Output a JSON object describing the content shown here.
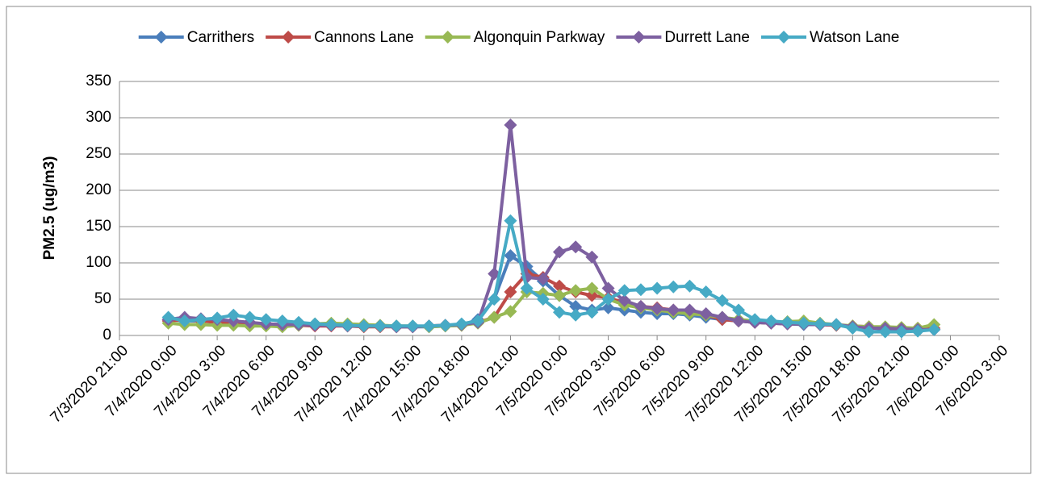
{
  "chart_data": {
    "type": "line",
    "y_label": "PM2.5 (ug/m3)",
    "x": [
      "7/4/2020 0:00",
      "7/4/2020 1:00",
      "7/4/2020 2:00",
      "7/4/2020 3:00",
      "7/4/2020 4:00",
      "7/4/2020 5:00",
      "7/4/2020 6:00",
      "7/4/2020 7:00",
      "7/4/2020 8:00",
      "7/4/2020 9:00",
      "7/4/2020 10:00",
      "7/4/2020 11:00",
      "7/4/2020 12:00",
      "7/4/2020 13:00",
      "7/4/2020 14:00",
      "7/4/2020 15:00",
      "7/4/2020 16:00",
      "7/4/2020 17:00",
      "7/4/2020 18:00",
      "7/4/2020 19:00",
      "7/4/2020 20:00",
      "7/4/2020 21:00",
      "7/4/2020 22:00",
      "7/4/2020 23:00",
      "7/5/2020 0:00",
      "7/5/2020 1:00",
      "7/5/2020 2:00",
      "7/5/2020 3:00",
      "7/5/2020 4:00",
      "7/5/2020 5:00",
      "7/5/2020 6:00",
      "7/5/2020 7:00",
      "7/5/2020 8:00",
      "7/5/2020 9:00",
      "7/5/2020 10:00",
      "7/5/2020 11:00",
      "7/5/2020 12:00",
      "7/5/2020 13:00",
      "7/5/2020 14:00",
      "7/5/2020 15:00",
      "7/5/2020 16:00",
      "7/5/2020 17:00",
      "7/5/2020 18:00",
      "7/5/2020 19:00",
      "7/5/2020 20:00",
      "7/5/2020 21:00",
      "7/5/2020 22:00",
      "7/5/2020 23:00"
    ],
    "series": [
      {
        "name": "Carrithers",
        "color": "#4a7ebb",
        "values": [
          22,
          20,
          20,
          19,
          18,
          17,
          16,
          15,
          15,
          14,
          14,
          13,
          13,
          13,
          12,
          12,
          12,
          13,
          14,
          22,
          50,
          110,
          95,
          75,
          55,
          40,
          35,
          38,
          35,
          32,
          30,
          30,
          28,
          25,
          22,
          20,
          18,
          17,
          16,
          15,
          15,
          14,
          12,
          10,
          9,
          8,
          8,
          8
        ]
      },
      {
        "name": "Cannons Lane",
        "color": "#be4b48",
        "values": [
          20,
          22,
          20,
          18,
          17,
          15,
          15,
          14,
          14,
          13,
          13,
          13,
          12,
          12,
          12,
          12,
          13,
          14,
          14,
          18,
          25,
          60,
          85,
          80,
          68,
          60,
          55,
          52,
          45,
          40,
          38,
          35,
          32,
          28,
          22,
          20,
          18,
          17,
          16,
          16,
          15,
          14,
          13,
          12,
          11,
          10,
          10,
          10
        ]
      },
      {
        "name": "Algonquin Parkway",
        "color": "#98b954",
        "values": [
          17,
          15,
          15,
          14,
          14,
          13,
          13,
          12,
          14,
          16,
          17,
          16,
          15,
          14,
          13,
          13,
          12,
          13,
          14,
          17,
          25,
          33,
          60,
          58,
          55,
          62,
          65,
          50,
          42,
          38,
          35,
          32,
          30,
          28,
          25,
          22,
          20,
          18,
          19,
          20,
          17,
          15,
          13,
          12,
          12,
          11,
          10,
          15
        ]
      },
      {
        "name": "Durrett Lane",
        "color": "#7d60a0",
        "values": [
          22,
          25,
          23,
          22,
          20,
          18,
          16,
          15,
          15,
          14,
          14,
          13,
          13,
          13,
          12,
          12,
          13,
          14,
          15,
          18,
          85,
          290,
          80,
          78,
          115,
          122,
          108,
          65,
          48,
          40,
          37,
          35,
          35,
          30,
          25,
          20,
          18,
          17,
          16,
          16,
          15,
          15,
          12,
          10,
          10,
          9,
          8,
          8
        ]
      },
      {
        "name": "Watson Lane",
        "color": "#46aac5",
        "values": [
          25,
          20,
          22,
          24,
          28,
          25,
          22,
          20,
          18,
          16,
          15,
          14,
          13,
          13,
          13,
          13,
          13,
          14,
          16,
          20,
          50,
          158,
          65,
          50,
          32,
          28,
          32,
          50,
          62,
          63,
          65,
          67,
          68,
          60,
          48,
          35,
          22,
          20,
          18,
          17,
          16,
          15,
          10,
          5,
          5,
          5,
          6,
          8
        ]
      }
    ],
    "xlim": [
      "7/3/2020 21:00",
      "7/6/2020 3:00"
    ],
    "xticks": [
      "7/3/2020 21:00",
      "7/4/2020 0:00",
      "7/4/2020 3:00",
      "7/4/2020 6:00",
      "7/4/2020 9:00",
      "7/4/2020 12:00",
      "7/4/2020 15:00",
      "7/4/2020 18:00",
      "7/4/2020 21:00",
      "7/5/2020 0:00",
      "7/5/2020 3:00",
      "7/5/2020 6:00",
      "7/5/2020 9:00",
      "7/5/2020 12:00",
      "7/5/2020 15:00",
      "7/5/2020 18:00",
      "7/5/2020 21:00",
      "7/6/2020 0:00",
      "7/6/2020 3:00"
    ],
    "ylim": [
      0,
      350
    ],
    "yticks": [
      0,
      50,
      100,
      150,
      200,
      250,
      300,
      350
    ],
    "grid": true,
    "legend": "top"
  }
}
